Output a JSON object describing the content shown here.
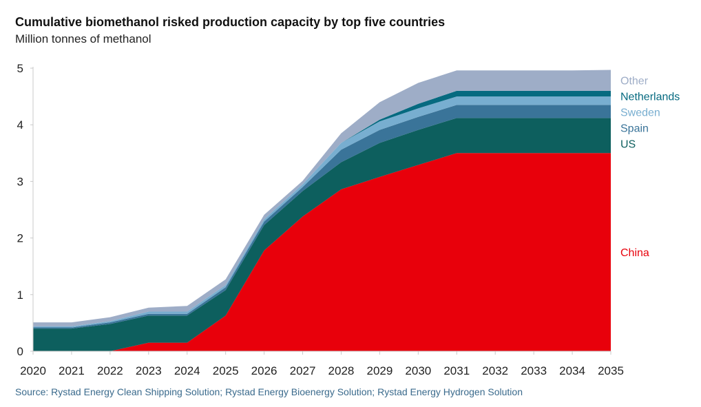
{
  "chart_data": {
    "type": "area",
    "stacked": true,
    "title": "Cumulative biomethanol risked production capacity by top five countries",
    "subtitle": "Million tonnes of methanol",
    "source": "Source: Rystad Energy Clean Shipping Solution; Rystad Energy Bioenergy Solution; Rystad Energy Hydrogen Solution",
    "x": [
      "2020",
      "2021",
      "2022",
      "2023",
      "2024",
      "2025",
      "2026",
      "2027",
      "2028",
      "2029",
      "2030",
      "2031",
      "2032",
      "2033",
      "2034",
      "2035"
    ],
    "ylim": [
      0,
      5
    ],
    "yticks": [
      "0",
      "1",
      "2",
      "3",
      "4",
      "5"
    ],
    "grid": false,
    "legend": "right",
    "series": [
      {
        "name": "China",
        "color": "#e8000b",
        "values": [
          0,
          0,
          0,
          0.15,
          0.15,
          0.63,
          1.78,
          2.38,
          2.86,
          3.08,
          3.29,
          3.5,
          3.5,
          3.5,
          3.5,
          3.5
        ]
      },
      {
        "name": "US",
        "color": "#0d5f5e",
        "values": [
          0.4,
          0.4,
          0.48,
          0.48,
          0.48,
          0.45,
          0.45,
          0.45,
          0.48,
          0.6,
          0.62,
          0.62,
          0.62,
          0.62,
          0.62,
          0.62
        ]
      },
      {
        "name": "Spain",
        "color": "#3a7499",
        "values": [
          0.02,
          0.02,
          0.03,
          0.03,
          0.03,
          0.05,
          0.06,
          0.07,
          0.22,
          0.23,
          0.23,
          0.23,
          0.23,
          0.23,
          0.23,
          0.23
        ]
      },
      {
        "name": "Sweden",
        "color": "#78aed0",
        "values": [
          0.02,
          0.02,
          0.02,
          0.04,
          0.04,
          0.04,
          0.04,
          0.05,
          0.12,
          0.15,
          0.15,
          0.15,
          0.15,
          0.15,
          0.15,
          0.15
        ]
      },
      {
        "name": "Netherlands",
        "color": "#066a80",
        "values": [
          0,
          0,
          0,
          0,
          0,
          0,
          0,
          0,
          0,
          0.03,
          0.08,
          0.1,
          0.1,
          0.1,
          0.1,
          0.1
        ]
      },
      {
        "name": "Other",
        "color": "#9eadc7",
        "values": [
          0.07,
          0.07,
          0.07,
          0.07,
          0.1,
          0.1,
          0.08,
          0.06,
          0.17,
          0.31,
          0.37,
          0.36,
          0.36,
          0.36,
          0.36,
          0.37
        ]
      }
    ]
  }
}
